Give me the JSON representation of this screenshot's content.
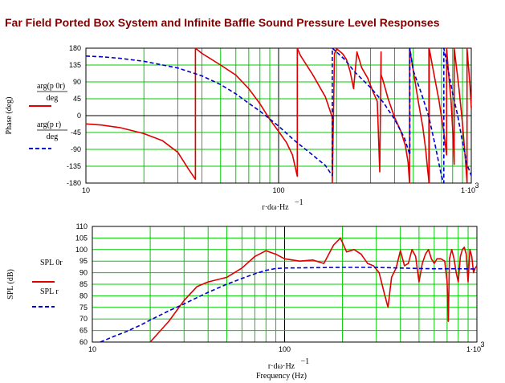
{
  "title": "Far Field Ported Box System and Infinite Baffle Sound Pressure Level Responses",
  "chart_data": [
    {
      "type": "line",
      "xscale": "log",
      "xlim": [
        10,
        1000
      ],
      "ylim": [
        -180,
        180
      ],
      "yticks": [
        180,
        135,
        90,
        45,
        0,
        -45,
        -90,
        -135,
        -180
      ],
      "xtick_labels": [
        "10",
        "100",
        "1·10",
        "3"
      ],
      "xlabel": "r·dω·Hz",
      "xlabel_exp": "−1",
      "ylabel": "Phase (deg)",
      "legend": [
        {
          "top": "arg(p 0r)",
          "bottom": "deg",
          "style": "solid",
          "color": "#e00000"
        },
        {
          "top": "arg(p r)",
          "bottom": "deg",
          "style": "dashed",
          "color": "#0000cc"
        }
      ],
      "grid": true,
      "series": [
        {
          "color": "#e00000",
          "style": "solid",
          "x": [
            10,
            12,
            15,
            18,
            20,
            25,
            30,
            34,
            37,
            37,
            40,
            50,
            60,
            70,
            80,
            90,
            100,
            110,
            118,
            125,
            125,
            130,
            150,
            175,
            190,
            190,
            195,
            200,
            205,
            215,
            225,
            235,
            245,
            255,
            270,
            290,
            310,
            325,
            335,
            340,
            340,
            350,
            370,
            400,
            430,
            455,
            470,
            478,
            478,
            500,
            530,
            560,
            580,
            595,
            605,
            605,
            635,
            680,
            720,
            745,
            745,
            760,
            785,
            805,
            815,
            815,
            860,
            900,
            930,
            950,
            950,
            985,
            1000
          ],
          "y": [
            -22,
            -25,
            -32,
            -42,
            -48,
            -67,
            -98,
            -142,
            -170,
            180,
            166,
            135,
            108,
            72,
            32,
            -10,
            -42,
            -72,
            -105,
            -162,
            180,
            160,
            110,
            50,
            -5,
            -180,
            165,
            178,
            174,
            165,
            150,
            118,
            72,
            170,
            128,
            100,
            62,
            38,
            -150,
            170,
            110,
            90,
            45,
            -5,
            -40,
            -80,
            -125,
            -180,
            180,
            120,
            40,
            -30,
            -90,
            -150,
            -180,
            180,
            120,
            40,
            -45,
            -105,
            180,
            120,
            40,
            -60,
            -130,
            180,
            80,
            -20,
            -110,
            -178,
            180,
            80,
            20
          ]
        },
        {
          "color": "#0000cc",
          "style": "dashed",
          "x": [
            10,
            12,
            15,
            20,
            30,
            40,
            50,
            60,
            70,
            80,
            100,
            120,
            150,
            175,
            190,
            190,
            200,
            220,
            250,
            300,
            350,
            400,
            450,
            480,
            480,
            500,
            550,
            600,
            650,
            700,
            720,
            720,
            760,
            800,
            850,
            900,
            950,
            1000
          ],
          "y": [
            159,
            157,
            153,
            145,
            127,
            106,
            83,
            58,
            33,
            12,
            -28,
            -65,
            -105,
            -133,
            -160,
            180,
            170,
            150,
            115,
            75,
            35,
            -10,
            -60,
            -105,
            180,
            120,
            60,
            0,
            -80,
            -160,
            -180,
            180,
            120,
            60,
            0,
            -70,
            -130,
            -160
          ]
        }
      ]
    },
    {
      "type": "line",
      "xscale": "log",
      "xlim": [
        10,
        1000
      ],
      "ylim": [
        60,
        110
      ],
      "yticks": [
        110,
        105,
        100,
        95,
        90,
        85,
        80,
        75,
        70,
        65,
        60
      ],
      "xtick_labels": [
        "10",
        "100",
        "1·10",
        "3"
      ],
      "xlabel": "r·dω·Hz",
      "xlabel_exp": "−1",
      "xlabel2": "Frequency (Hz)",
      "ylabel": "SPL (dB)",
      "legend": [
        {
          "top": "SPL 0r",
          "style": "solid",
          "color": "#e00000"
        },
        {
          "top": "SPL r",
          "style": "dashed",
          "color": "#0000cc"
        }
      ],
      "grid": true,
      "series": [
        {
          "color": "#e00000",
          "style": "solid",
          "x": [
            20,
            25,
            30,
            35,
            40,
            50,
            60,
            70,
            80,
            90,
            100,
            120,
            140,
            160,
            180,
            195,
            210,
            230,
            250,
            270,
            290,
            310,
            330,
            345,
            360,
            380,
            400,
            420,
            440,
            460,
            480,
            500,
            520,
            540,
            560,
            580,
            600,
            620,
            650,
            680,
            700,
            710,
            720,
            740,
            760,
            780,
            800,
            820,
            840,
            860,
            880,
            900,
            920,
            940,
            960,
            980,
            1000
          ],
          "y": [
            60,
            69,
            78,
            84,
            86,
            88,
            92,
            97,
            99.5,
            98,
            96,
            95,
            95.5,
            94,
            102,
            105,
            99,
            100,
            98,
            94,
            93,
            90,
            81,
            75,
            88,
            92,
            99.5,
            93,
            94,
            100,
            97,
            86,
            94,
            98,
            100,
            96,
            94,
            96,
            96,
            95,
            86,
            69,
            96,
            100,
            96,
            90,
            86,
            97,
            100,
            101,
            98,
            86,
            100,
            97,
            90,
            92,
            93
          ]
        },
        {
          "color": "#0000cc",
          "style": "dashed",
          "x": [
            11,
            13,
            15,
            18,
            20,
            25,
            30,
            35,
            40,
            50,
            60,
            70,
            80,
            90,
            100,
            150,
            200,
            300,
            400,
            500,
            600,
            800,
            1000
          ],
          "y": [
            60,
            62.5,
            64.5,
            67.5,
            69.5,
            73.5,
            76.5,
            79.2,
            81.5,
            85,
            87.5,
            89.5,
            91,
            91.8,
            92,
            92.2,
            92.3,
            92.3,
            92,
            91.8,
            91.7,
            91.7,
            91.6
          ]
        }
      ]
    }
  ]
}
